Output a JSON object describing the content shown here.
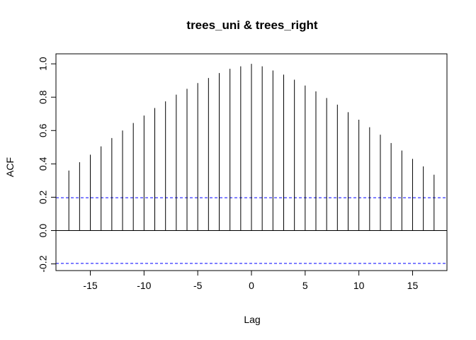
{
  "chart_data": {
    "type": "bar",
    "title": "trees_uni & trees_right",
    "xlabel": "Lag",
    "ylabel": "ACF",
    "xlim": [
      -18.2,
      18.2
    ],
    "ylim": [
      -0.24,
      1.06
    ],
    "xticks": [
      -15,
      -10,
      -5,
      0,
      5,
      10,
      15
    ],
    "xtick_labels": [
      "-15",
      "-10",
      "-5",
      "0",
      "5",
      "10",
      "15"
    ],
    "yticks": [
      -0.2,
      0.0,
      0.2,
      0.4,
      0.6,
      0.8,
      1.0
    ],
    "ytick_labels": [
      "-0.2",
      "0.0",
      "0.2",
      "0.4",
      "0.6",
      "0.8",
      "1.0"
    ],
    "lags": [
      -17,
      -16,
      -15,
      -14,
      -13,
      -12,
      -11,
      -10,
      -9,
      -8,
      -7,
      -6,
      -5,
      -4,
      -3,
      -2,
      -1,
      0,
      1,
      2,
      3,
      4,
      5,
      6,
      7,
      8,
      9,
      10,
      11,
      12,
      13,
      14,
      15,
      16,
      17
    ],
    "acf": [
      0.36,
      0.41,
      0.455,
      0.505,
      0.555,
      0.6,
      0.645,
      0.69,
      0.735,
      0.775,
      0.815,
      0.85,
      0.885,
      0.915,
      0.945,
      0.97,
      0.985,
      1.0,
      0.985,
      0.96,
      0.935,
      0.905,
      0.87,
      0.835,
      0.795,
      0.755,
      0.71,
      0.665,
      0.62,
      0.575,
      0.525,
      0.48,
      0.43,
      0.385,
      0.335
    ],
    "conf_limits": [
      0.197,
      -0.197
    ],
    "colors": {
      "bars": "#000000",
      "conf": "#0000ff",
      "zero": "#000000"
    },
    "grid": false
  }
}
